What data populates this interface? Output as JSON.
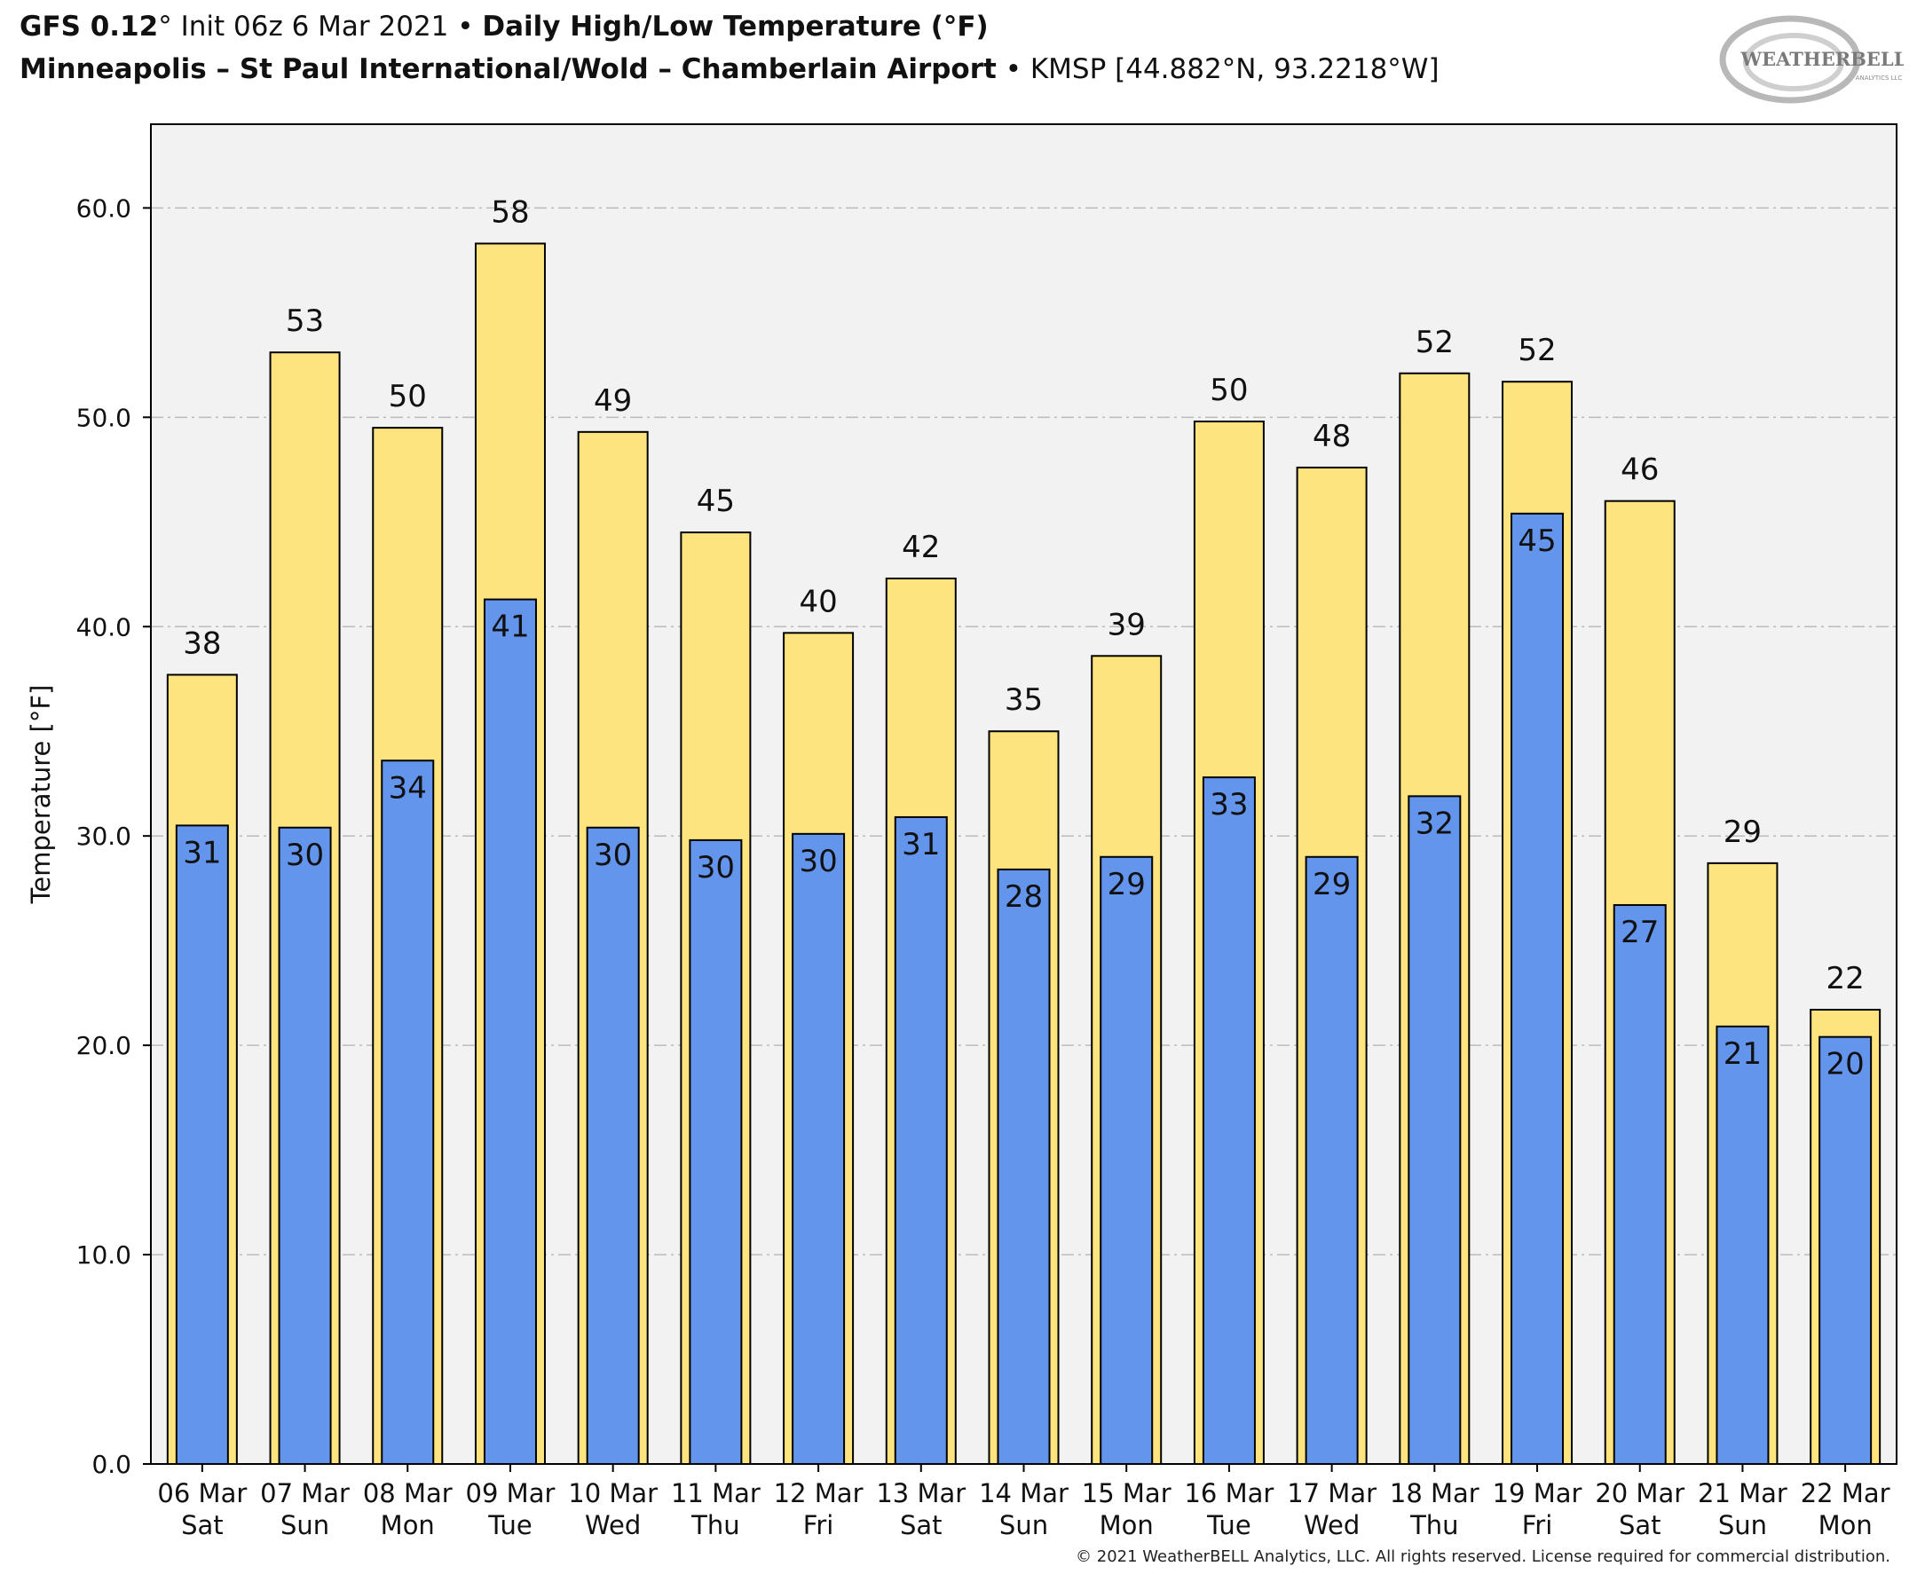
{
  "header": {
    "model": "GFS 0.12",
    "deg": "°",
    "init": " Init 06z 6 Mar 2021",
    "sep": " • ",
    "product": "Daily High/Low Temperature (°F)",
    "station": "Minneapolis – St Paul International/Wold – Chamberlain Airport",
    "station_info": "KMSP [44.882°N, 93.2218°W]"
  },
  "logo": {
    "text": "WEATHERBELL",
    "sub": "ANALYTICS LLC"
  },
  "copyright": "© 2021 WeatherBELL Analytics, LLC. All rights reserved. License required for commercial distribution.",
  "colors": {
    "high": "#fde47f",
    "low": "#6495ed",
    "plot_bg": "#f2f2f2",
    "grid": "#bbbbbb",
    "outline": "#000000"
  },
  "chart_data": {
    "type": "bar",
    "ylabel": "Temperature [°F]",
    "ylim": [
      0,
      64
    ],
    "yticks": [
      0,
      10,
      20,
      30,
      40,
      50,
      60
    ],
    "ytick_labels": [
      "0.0",
      "10.0",
      "20.0",
      "30.0",
      "40.0",
      "50.0",
      "60.0"
    ],
    "grid": "horizontal dashed",
    "categories": [
      {
        "date": "06 Mar",
        "day": "Sat"
      },
      {
        "date": "07 Mar",
        "day": "Sun"
      },
      {
        "date": "08 Mar",
        "day": "Mon"
      },
      {
        "date": "09 Mar",
        "day": "Tue"
      },
      {
        "date": "10 Mar",
        "day": "Wed"
      },
      {
        "date": "11 Mar",
        "day": "Thu"
      },
      {
        "date": "12 Mar",
        "day": "Fri"
      },
      {
        "date": "13 Mar",
        "day": "Sat"
      },
      {
        "date": "14 Mar",
        "day": "Sun"
      },
      {
        "date": "15 Mar",
        "day": "Mon"
      },
      {
        "date": "16 Mar",
        "day": "Tue"
      },
      {
        "date": "17 Mar",
        "day": "Wed"
      },
      {
        "date": "18 Mar",
        "day": "Thu"
      },
      {
        "date": "19 Mar",
        "day": "Fri"
      },
      {
        "date": "20 Mar",
        "day": "Sat"
      },
      {
        "date": "21 Mar",
        "day": "Sun"
      },
      {
        "date": "22 Mar",
        "day": "Mon"
      }
    ],
    "series": [
      {
        "key": "high",
        "values": [
          37.7,
          53.1,
          49.5,
          58.3,
          49.3,
          44.5,
          39.7,
          42.3,
          35.0,
          38.6,
          49.8,
          47.6,
          52.1,
          51.7,
          46.0,
          28.7,
          21.7
        ],
        "labels": [
          "38",
          "53",
          "50",
          "58",
          "49",
          "45",
          "40",
          "42",
          "35",
          "39",
          "50",
          "48",
          "52",
          "52",
          "46",
          "29",
          "22"
        ]
      },
      {
        "key": "low",
        "values": [
          30.5,
          30.4,
          33.6,
          41.3,
          30.4,
          29.8,
          30.1,
          30.9,
          28.4,
          29.0,
          32.8,
          29.0,
          31.9,
          45.4,
          26.7,
          20.9,
          20.4
        ],
        "labels": [
          "31",
          "30",
          "34",
          "41",
          "30",
          "30",
          "30",
          "31",
          "28",
          "29",
          "33",
          "29",
          "32",
          "45",
          "27",
          "21",
          "20"
        ]
      }
    ]
  }
}
